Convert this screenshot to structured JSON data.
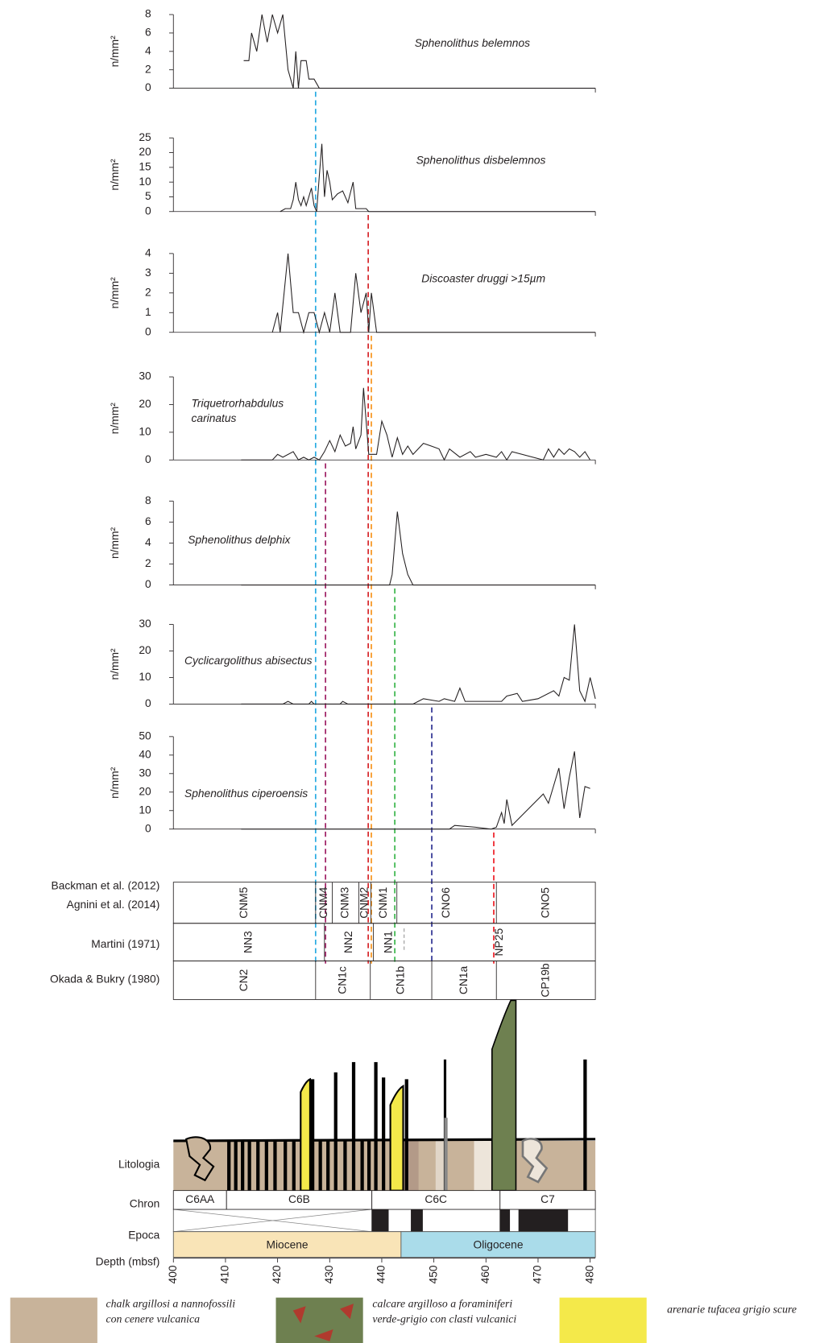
{
  "chart_data": [
    {
      "type": "line",
      "title": "Sphenolithus belemnos",
      "y_label": "n/mm²",
      "color": "#29abe2",
      "ylim": [
        0,
        8
      ],
      "yticks": [
        0,
        2,
        4,
        6,
        8
      ],
      "xlim": [
        400,
        481
      ],
      "datum": 427.3,
      "x": [
        413.5,
        414.5,
        415,
        416,
        417,
        418,
        419,
        420,
        421,
        422,
        423,
        423.5,
        424,
        424.5,
        425.5,
        426,
        427,
        428,
        481
      ],
      "values": [
        3,
        3,
        6,
        4,
        8,
        5,
        8,
        6,
        8,
        2,
        0,
        4,
        0,
        3,
        3,
        1,
        1,
        0,
        0
      ]
    },
    {
      "type": "line",
      "title": "Sphenolithus disbelemnos",
      "y_label": "n/mm²",
      "color": "#d7262b",
      "ylim": [
        0,
        25
      ],
      "yticks": [
        0,
        5,
        10,
        15,
        20,
        25
      ],
      "xlim": [
        400,
        481
      ],
      "datum": 437.4,
      "x": [
        420.5,
        421.5,
        422.5,
        423,
        423.5,
        424,
        424.5,
        425,
        425.5,
        426.5,
        427,
        427.5,
        428,
        428.5,
        429,
        429.5,
        430,
        430.5,
        431.5,
        432.5,
        433.5,
        434.5,
        435,
        436,
        437,
        437.5,
        481
      ],
      "values": [
        0,
        1,
        1,
        4,
        10,
        4,
        2,
        5,
        2,
        8,
        2,
        0,
        12,
        23,
        5,
        14,
        10,
        4,
        6,
        7,
        3,
        10,
        1,
        1,
        1,
        0,
        0
      ]
    },
    {
      "type": "line",
      "title": "Discoaster druggi >15µm",
      "y_label": "n/mm²",
      "color": "#f7941d",
      "ylim": [
        0,
        4
      ],
      "yticks": [
        0,
        1,
        2,
        3,
        4
      ],
      "xlim": [
        400,
        481
      ],
      "datum": 438,
      "x": [
        419,
        420,
        420.5,
        422,
        423,
        424,
        425,
        426,
        427,
        428,
        429,
        430,
        431,
        432,
        434,
        435,
        436,
        437,
        437.5,
        438,
        439,
        481
      ],
      "values": [
        0,
        1,
        0,
        4,
        1,
        1,
        0,
        1,
        1,
        0,
        1,
        0,
        2,
        0,
        0,
        3,
        1,
        2,
        0,
        2,
        0,
        0
      ]
    },
    {
      "type": "line",
      "title": [
        "Triquetrorhabdulus",
        "carinatus"
      ],
      "y_label": "n/mm²",
      "color": "#9e1f63",
      "ylim": [
        0,
        30
      ],
      "yticks": [
        0,
        10,
        20,
        30
      ],
      "xlim": [
        400,
        481
      ],
      "datum": 429.2,
      "x": [
        413,
        419,
        420,
        421,
        423,
        424,
        425,
        426,
        427,
        428,
        429,
        430,
        431,
        432,
        433,
        434,
        434.5,
        435,
        436,
        436.5,
        437.5,
        439,
        440,
        441,
        442,
        443,
        444,
        445,
        446,
        447,
        448,
        449.5,
        451,
        452,
        453,
        455,
        457,
        458,
        460,
        462,
        463,
        464,
        465,
        471,
        472,
        473,
        474,
        475,
        476,
        477,
        478,
        479,
        480
      ],
      "values": [
        0,
        0,
        2,
        1,
        3,
        0,
        1,
        0,
        1,
        0,
        3,
        7,
        3,
        9,
        5,
        6,
        12,
        4,
        9,
        26,
        2,
        2,
        14,
        9,
        1,
        8,
        2,
        5,
        2,
        4,
        6,
        5,
        4,
        0,
        4,
        1,
        3,
        1,
        2,
        1,
        3,
        0,
        3,
        0,
        4,
        1,
        4,
        2,
        4,
        3,
        1,
        3,
        0
      ]
    },
    {
      "type": "line",
      "title": "Sphenolithus delphix",
      "y_label": "n/mm²",
      "color": "#39b54a",
      "ylim": [
        0,
        8
      ],
      "yticks": [
        0,
        2,
        4,
        6,
        8
      ],
      "xlim": [
        400,
        481
      ],
      "datum": 442.5,
      "x": [
        413,
        441.5,
        442,
        443,
        444,
        445,
        446,
        481
      ],
      "values": [
        0,
        0,
        1,
        7,
        3,
        1,
        0,
        0
      ]
    },
    {
      "type": "line",
      "title": "Cyclicargolithus abisectus",
      "y_label": "n/mm²",
      "color": "#2e3192",
      "ylim": [
        0,
        30
      ],
      "yticks": [
        0,
        10,
        20,
        30
      ],
      "xlim": [
        400,
        481
      ],
      "datum": 449.6,
      "x": [
        413,
        421,
        422,
        423,
        426,
        426.5,
        427,
        432,
        432.5,
        433.5,
        446,
        447,
        448,
        451,
        452,
        454,
        455,
        456,
        459,
        463,
        464,
        466,
        467,
        470,
        473,
        474,
        475,
        476,
        477,
        478,
        479,
        480,
        481
      ],
      "values": [
        0,
        0,
        1,
        0,
        0,
        1,
        0,
        0,
        1,
        0,
        0,
        1,
        2,
        1,
        2,
        1,
        6,
        1,
        1,
        1,
        3,
        4,
        1,
        2,
        5,
        3,
        10,
        9,
        30,
        5,
        1,
        10,
        2
      ]
    },
    {
      "type": "line",
      "title": "Sphenolithus ciperoensis",
      "y_label": "n/mm²",
      "color": "#ed1c24",
      "ylim": [
        0,
        50
      ],
      "yticks": [
        0,
        10,
        20,
        30,
        40,
        50
      ],
      "xlim": [
        400,
        481
      ],
      "datum": 461.5,
      "x": [
        413,
        453,
        454,
        458,
        461,
        462,
        463,
        463.5,
        464,
        465,
        471,
        472,
        474,
        475,
        476,
        477,
        478,
        479,
        480
      ],
      "values": [
        0,
        0,
        2,
        1,
        0,
        1,
        9,
        3,
        16,
        2,
        19,
        14,
        33,
        11,
        28,
        42,
        6,
        23,
        22
      ]
    }
  ],
  "stratigraphy": {
    "rows": [
      {
        "labels": [
          "Backman et al. (2012)",
          "Agnini et al. (2014)"
        ],
        "zones": [
          {
            "name": "CNM5",
            "top": 400,
            "base": 427.3
          },
          {
            "name": "CNM4",
            "top": 427.3,
            "base": 430.5
          },
          {
            "name": "CNM3",
            "top": 430.5,
            "base": 435.6
          },
          {
            "name": "CNM2",
            "top": 435.6,
            "base": 437.9
          },
          {
            "name": "CNM1",
            "top": 437.9,
            "base": 442.9
          },
          {
            "name": "CNO6",
            "top": 442.9,
            "base": 462
          },
          {
            "name": "CNO5",
            "top": 462,
            "base": 481
          }
        ]
      },
      {
        "labels": [
          "Martini (1971)"
        ],
        "zones": [
          {
            "name": "NN3",
            "top": 400,
            "base": 429
          },
          {
            "name": "NN2",
            "top": 429,
            "base": 438.4
          },
          {
            "name": "NN1",
            "top": 438.4,
            "base": 444.3,
            "uncertain_base": true
          },
          {
            "name": "NP25",
            "top": 444.3,
            "base": 481
          }
        ]
      },
      {
        "labels": [
          "Okada & Bukry (1980)"
        ],
        "zones": [
          {
            "name": "CN2",
            "top": 400,
            "base": 427.3
          },
          {
            "name": "CN1c",
            "top": 427.3,
            "base": 437.8
          },
          {
            "name": "CN1b",
            "top": 437.8,
            "base": 449.6
          },
          {
            "name": "CN1a",
            "top": 449.6,
            "base": 462
          },
          {
            "name": "CP19b",
            "top": 462,
            "base": 481
          }
        ]
      }
    ]
  },
  "lithology": {
    "label": "Litologia"
  },
  "chron": {
    "label": "Chron",
    "chrons": [
      {
        "name": "C6AA",
        "top": 400,
        "base": 410.2
      },
      {
        "name": "C6B",
        "top": 410.2,
        "base": 438.1
      },
      {
        "name": "C6C",
        "top": 438.1,
        "base": 462.7
      },
      {
        "name": "C7",
        "top": 462.7,
        "base": 481
      }
    ]
  },
  "epoch": {
    "label": "Epoca",
    "epochs": [
      {
        "name": "Miocene",
        "top": 400,
        "base": 443.7,
        "color": "#f9e4b7"
      },
      {
        "name": "Oligocene",
        "top": 443.7,
        "base": 481,
        "color": "#aadcea"
      }
    ]
  },
  "depth_axis": {
    "label": "Depth (mbsf)",
    "xlim": [
      400,
      481
    ],
    "xticks": [
      400,
      410,
      420,
      430,
      440,
      450,
      460,
      470,
      480
    ]
  },
  "legend": [
    {
      "text": [
        "chalk argillosi a nannofossili",
        "con cenere vulcanica"
      ],
      "color": "#c8b39a"
    },
    {
      "text": [
        "calcare argilloso a foraminiferi",
        "verde-grigio con clasti vulcanici"
      ],
      "color": "#6e8050"
    },
    {
      "text": [
        "arenarie tufacea grigio scure"
      ],
      "color": "#f4e94a"
    }
  ]
}
